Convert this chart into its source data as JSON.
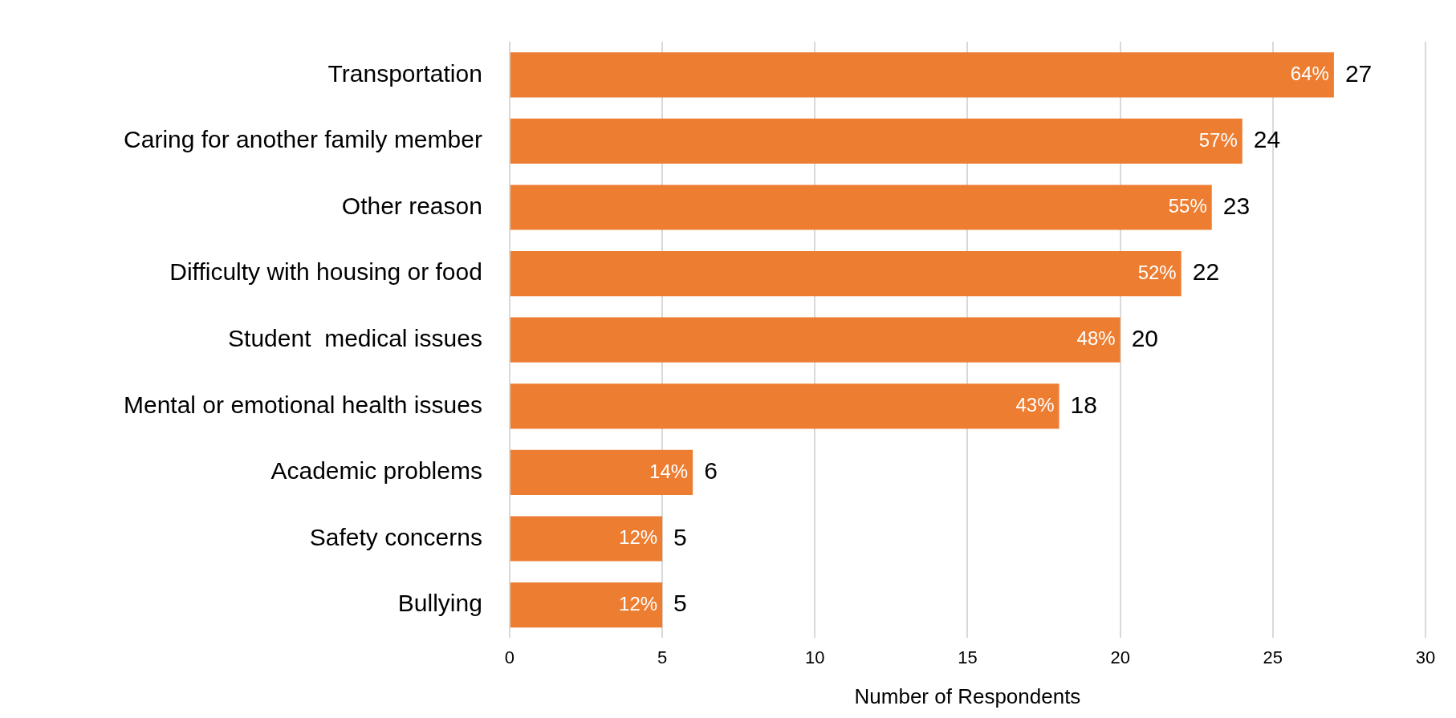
{
  "chart_data": {
    "type": "bar",
    "orientation": "horizontal",
    "xlabel": "Number of Respondents",
    "categories": [
      "Transportation",
      "Caring for another family member",
      "Other reason",
      "Difficulty with housing or food",
      "Student  medical issues",
      "Mental or emotional health issues",
      "Academic problems",
      "Safety concerns",
      "Bullying"
    ],
    "values": [
      27,
      24,
      23,
      22,
      20,
      18,
      6,
      5,
      5
    ],
    "value_labels": [
      "27",
      "24",
      "23",
      "22",
      "20",
      "18",
      "6",
      "5",
      "5"
    ],
    "annotations": [
      {
        "text": "64%",
        "x": 27,
        "y": "Transportation"
      },
      {
        "text": "57%",
        "x": 24,
        "y": "Caring for another family member"
      },
      {
        "text": "55%",
        "x": 23,
        "y": "Other reason"
      },
      {
        "text": "52%",
        "x": 22,
        "y": "Difficulty with housing or food"
      },
      {
        "text": "48%",
        "x": 20,
        "y": "Student  medical issues"
      },
      {
        "text": "43%",
        "x": 18,
        "y": "Mental or emotional health issues"
      },
      {
        "text": "14%",
        "x": 6,
        "y": "Academic problems"
      },
      {
        "text": "12%",
        "x": 5,
        "y": "Safety concerns"
      },
      {
        "text": "12%",
        "x": 5,
        "y": "Bullying"
      }
    ],
    "color": "#ed7d31",
    "xlim": [
      0,
      30
    ],
    "xticks": [
      0,
      5,
      10,
      15,
      20,
      25,
      30
    ],
    "grid": "x"
  }
}
